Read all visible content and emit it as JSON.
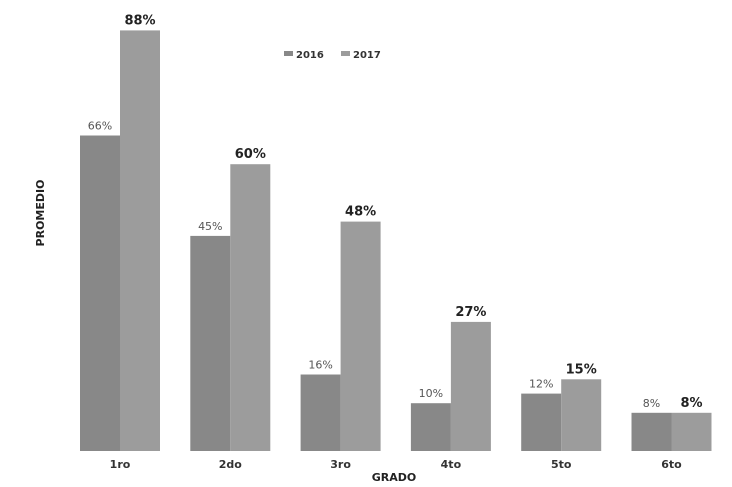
{
  "chart_data": {
    "type": "bar",
    "categories": [
      "1ro",
      "2do",
      "3ro",
      "4to",
      "5to",
      "6to"
    ],
    "series": [
      {
        "name": "2016",
        "values": [
          66,
          45,
          16,
          10,
          12,
          8
        ],
        "labels": [
          "66%",
          "45%",
          "16%",
          "10%",
          "12%",
          "8%"
        ],
        "color": "#888888"
      },
      {
        "name": "2017",
        "values": [
          88,
          60,
          48,
          27,
          15,
          8
        ],
        "labels": [
          "88%",
          "60%",
          "48%",
          "27%",
          "15%",
          "8%"
        ],
        "color": "#9c9c9c"
      }
    ],
    "xlabel": "GRADO",
    "ylabel": "PROMEDIO",
    "ylim": [
      0,
      90
    ],
    "legend": "top-center",
    "grid": false
  }
}
